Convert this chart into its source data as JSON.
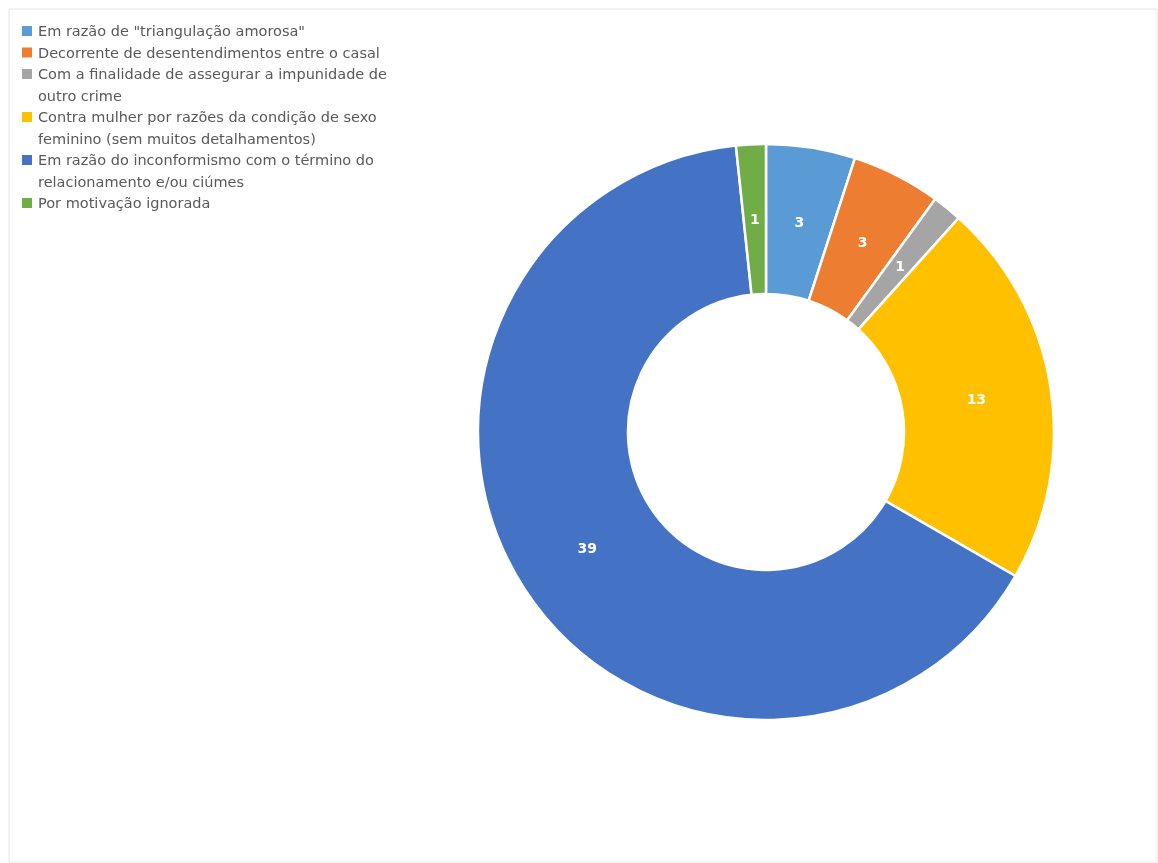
{
  "chart_data": {
    "type": "donut",
    "categories": [
      "Em razão de \"triangulação amorosa\"",
      "Decorrente de desentendimentos entre o casal",
      "Com a finalidade de assegurar a impunidade de outro crime",
      "Contra mulher por razões da condição de sexo feminino (sem muitos detalhamentos)",
      "Em razão do inconformismo com o término do relacionamento e/ou ciúmes",
      "Por motivação ignorada"
    ],
    "values": [
      3,
      3,
      1,
      13,
      39,
      1
    ],
    "colors": [
      "#5b9bd5",
      "#ed7d31",
      "#a5a5a5",
      "#ffc000",
      "#4472c4",
      "#70ad47"
    ],
    "data_labels": true,
    "legend": "top left"
  }
}
